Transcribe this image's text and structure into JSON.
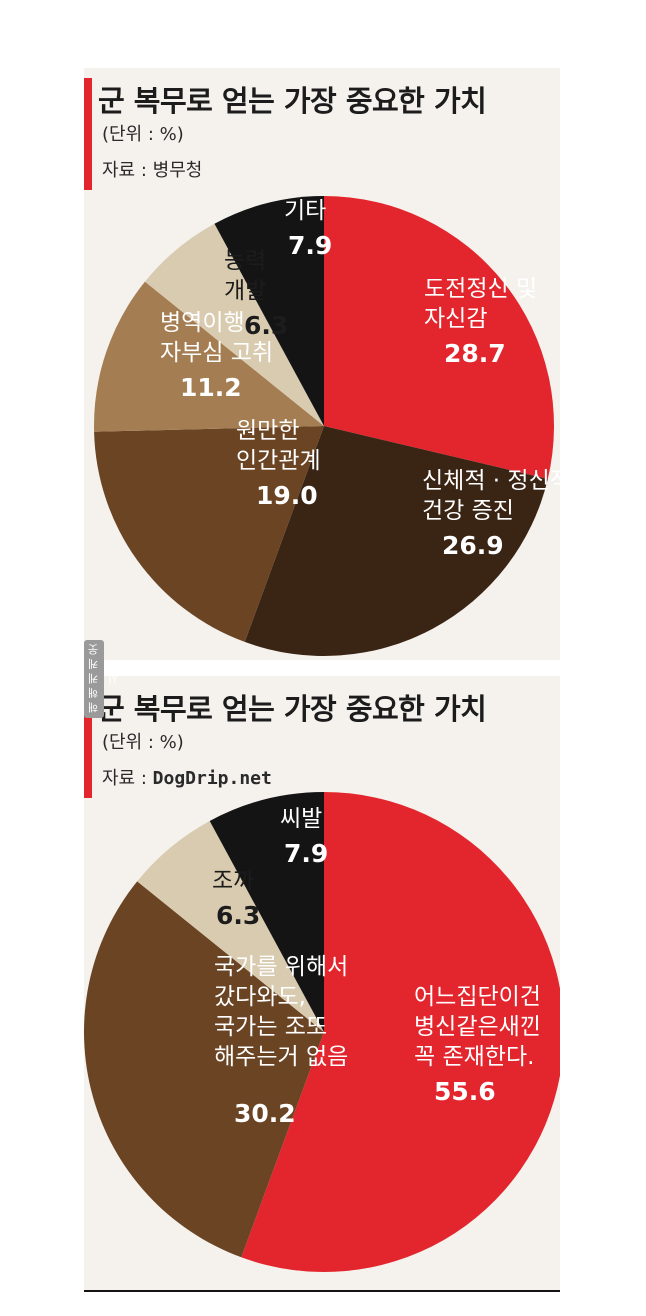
{
  "watermark": "해 해 케 케  웃 사",
  "chart_data": [
    {
      "type": "pie",
      "title": "군 복무로 얻는 가장 중요한 가치",
      "unit_label": "(단위 : %)",
      "source_label": "자료 : ",
      "source_value": "병무청",
      "slices": [
        {
          "label_lines": [
            "도전정신 및",
            "자신감"
          ],
          "value": 28.7,
          "value_text": "28.7",
          "color": "#e3262d",
          "text_color": "#ffffff"
        },
        {
          "label_lines": [
            "신체적 · 정신적",
            "건강 증진"
          ],
          "value": 26.9,
          "value_text": "26.9",
          "color": "#3a2414",
          "text_color": "#ffffff"
        },
        {
          "label_lines": [
            "원만한",
            "인간관계"
          ],
          "value": 19.0,
          "value_text": "19.0",
          "color": "#6b4424",
          "text_color": "#ffffff"
        },
        {
          "label_lines": [
            "병역이행",
            "자부심 고취"
          ],
          "value": 11.2,
          "value_text": "11.2",
          "color": "#a57d52",
          "text_color": "#ffffff"
        },
        {
          "label_lines": [
            "능력",
            "개발"
          ],
          "value": 6.3,
          "value_text": "6.3",
          "color": "#d9cbb0",
          "text_color": "#1c1c1c"
        },
        {
          "label_lines": [
            "기타"
          ],
          "value": 7.9,
          "value_text": "7.9",
          "color": "#141414",
          "text_color": "#ffffff"
        }
      ]
    },
    {
      "type": "pie",
      "title": "군 복무로 얻는 가장 중요한 가치",
      "unit_label": "(단위 : %)",
      "source_label": "자료 : ",
      "source_value": "DogDrip.net",
      "slices": [
        {
          "label_lines": [
            "어느집단이건",
            "병신같은새낀",
            "꼭 존재한다."
          ],
          "value": 55.6,
          "value_text": "55.6",
          "color": "#e3262d",
          "text_color": "#ffffff"
        },
        {
          "label_lines": [
            "국가를 위해서",
            "갔다와도,",
            "국가는 조또",
            "해주는거 없음"
          ],
          "value": 30.2,
          "value_text": "30.2",
          "color": "#6b4424",
          "text_color": "#ffffff"
        },
        {
          "label_lines": [
            "조까"
          ],
          "value": 6.3,
          "value_text": "6.3",
          "color": "#d9cbb0",
          "text_color": "#1c1c1c"
        },
        {
          "label_lines": [
            "씨발"
          ],
          "value": 7.9,
          "value_text": "7.9",
          "color": "#141414",
          "text_color": "#ffffff"
        }
      ]
    }
  ]
}
